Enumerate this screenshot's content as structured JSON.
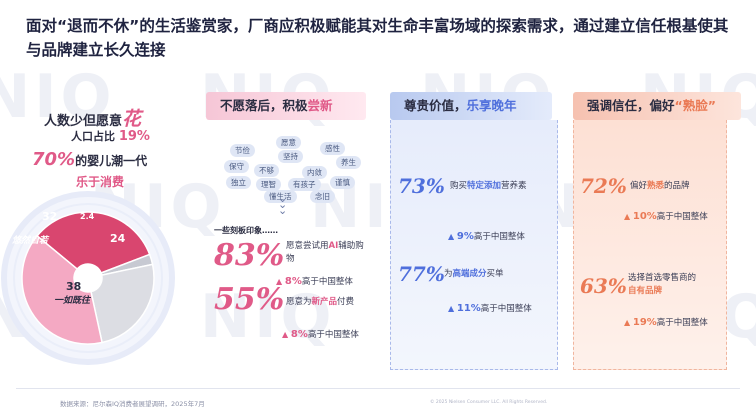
{
  "title": "面对“退而不休”的生活鉴赏家，厂商应积极赋能其对生命丰富场域的探索需求，通过建立信任根基使其与品牌建立长久连接",
  "watermark": "NIQ",
  "left": {
    "line1_prefix": "人数少但愿意",
    "line1_big": "花",
    "line2_prefix": "人口占比",
    "line2_pct": "19%",
    "line3_pct": "70%",
    "line3_text": "的婴儿潮一代",
    "line4": "乐于消费",
    "donut": {
      "values": [
        32,
        2.4,
        24,
        38
      ],
      "labels": [
        "32",
        "2.4",
        "24",
        "38"
      ],
      "segment_labels": [
        "悠然自若",
        "一如既往"
      ],
      "colors": [
        "#d9466f",
        "#c7c9d2",
        "#dcdde3",
        "#f4a9c3"
      ]
    }
  },
  "col1": {
    "header_a": "不愿落后，积极",
    "header_b": "尝新",
    "cloud_words": [
      "节俭",
      "愿意",
      "坚持",
      "感性",
      "养生",
      "保守",
      "不够",
      "内敛",
      "独立",
      "理智",
      "有孩子",
      "谨慎",
      "懂生活",
      "念旧"
    ],
    "impression": "一些刻板印象……",
    "stat1_num": "83%",
    "stat1_desc_a": "愿意尝试用",
    "stat1_desc_b": "AI",
    "stat1_desc_c": "辅助购物",
    "stat1_sub_num": "8%",
    "stat1_sub_text": "高于中国整体",
    "stat2_num": "55%",
    "stat2_desc_a": "愿意为",
    "stat2_desc_b": "新产品",
    "stat2_desc_c": "付费",
    "stat2_sub_num": "8%",
    "stat2_sub_text": "高于中国整体"
  },
  "col2": {
    "header_a": "尊贵价值，",
    "header_b": "乐享晚年",
    "stat1_num": "73%",
    "stat1_desc_a": "购买",
    "stat1_desc_b": "特定添加",
    "stat1_desc_c": "营养素",
    "stat1_sub_num": "9%",
    "stat1_sub_text": "高于中国整体",
    "stat2_num": "77%",
    "stat2_desc_a": "为",
    "stat2_desc_b": "高端成分",
    "stat2_desc_c": "买单",
    "stat2_sub_num": "11%",
    "stat2_sub_text": "高于中国整体"
  },
  "col3": {
    "header_a": "强调信任，偏好",
    "header_b": "“熟脸”",
    "stat1_num": "72%",
    "stat1_desc_a": "偏好",
    "stat1_desc_b": "熟悉",
    "stat1_desc_c": "的品牌",
    "stat1_sub_num": "10%",
    "stat1_sub_text": "高于中国整体",
    "stat2_num": "63%",
    "stat2_desc_a": "选择首选零售商的",
    "stat2_desc_b": "自有品牌",
    "stat2_sub_num": "19%",
    "stat2_sub_text": "高于中国整体"
  },
  "footer": {
    "source": "数据来源：尼尔森IQ消费者展望调研，2025年7月",
    "copyright": "© 2025 Nielsen Consumer LLC. All Rights Reserved."
  }
}
